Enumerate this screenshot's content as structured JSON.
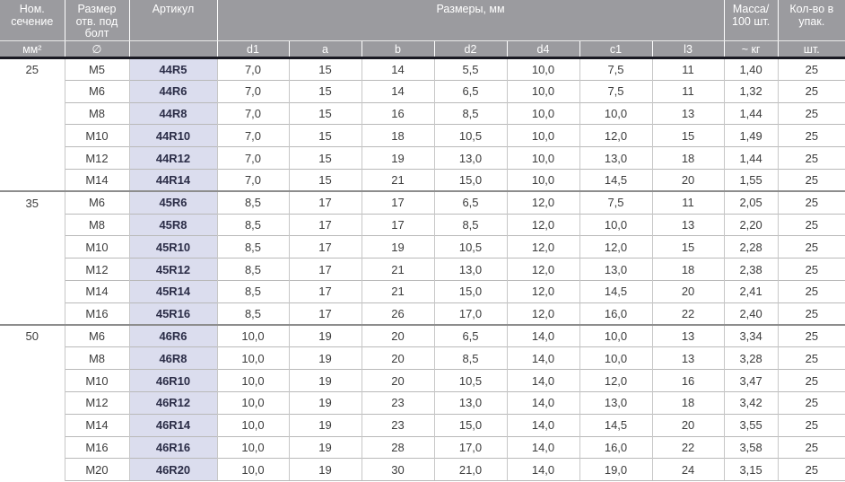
{
  "colors": {
    "header_bg": "#9b9b9f",
    "header_text": "#ffffff",
    "header_rule_dark": "#191922",
    "article_col_bg": "#dbddee",
    "article_text": "#2b2d47",
    "body_text": "#3c3c3c",
    "row_line": "#b9b9b9",
    "section_line": "#8d8d8d"
  },
  "header": {
    "groups": [
      {
        "label": "Ном.\nсечение"
      },
      {
        "label": "Размер\nотв. под\nболт"
      },
      {
        "label": "Артикул"
      },
      {
        "label": "Размеры, мм"
      },
      {
        "label": "Масса/\n100 шт."
      },
      {
        "label": "Кол-во в\nупак."
      }
    ],
    "subs": [
      "мм²",
      "∅",
      "",
      "d1",
      "a",
      "b",
      "d2",
      "d4",
      "c1",
      "l3",
      "~ кг",
      "шт."
    ]
  },
  "sections": [
    {
      "section": "25",
      "rows": [
        {
          "size": "M5",
          "article": "44R5",
          "dims": [
            "7,0",
            "15",
            "14",
            "5,5",
            "10,0",
            "7,5",
            "11"
          ],
          "mass": "1,40",
          "pack": "25"
        },
        {
          "size": "M6",
          "article": "44R6",
          "dims": [
            "7,0",
            "15",
            "14",
            "6,5",
            "10,0",
            "7,5",
            "11"
          ],
          "mass": "1,32",
          "pack": "25"
        },
        {
          "size": "M8",
          "article": "44R8",
          "dims": [
            "7,0",
            "15",
            "16",
            "8,5",
            "10,0",
            "10,0",
            "13"
          ],
          "mass": "1,44",
          "pack": "25"
        },
        {
          "size": "M10",
          "article": "44R10",
          "dims": [
            "7,0",
            "15",
            "18",
            "10,5",
            "10,0",
            "12,0",
            "15"
          ],
          "mass": "1,49",
          "pack": "25"
        },
        {
          "size": "M12",
          "article": "44R12",
          "dims": [
            "7,0",
            "15",
            "19",
            "13,0",
            "10,0",
            "13,0",
            "18"
          ],
          "mass": "1,44",
          "pack": "25"
        },
        {
          "size": "M14",
          "article": "44R14",
          "dims": [
            "7,0",
            "15",
            "21",
            "15,0",
            "10,0",
            "14,5",
            "20"
          ],
          "mass": "1,55",
          "pack": "25"
        }
      ]
    },
    {
      "section": "35",
      "rows": [
        {
          "size": "M6",
          "article": "45R6",
          "dims": [
            "8,5",
            "17",
            "17",
            "6,5",
            "12,0",
            "7,5",
            "11"
          ],
          "mass": "2,05",
          "pack": "25"
        },
        {
          "size": "M8",
          "article": "45R8",
          "dims": [
            "8,5",
            "17",
            "17",
            "8,5",
            "12,0",
            "10,0",
            "13"
          ],
          "mass": "2,20",
          "pack": "25"
        },
        {
          "size": "M10",
          "article": "45R10",
          "dims": [
            "8,5",
            "17",
            "19",
            "10,5",
            "12,0",
            "12,0",
            "15"
          ],
          "mass": "2,28",
          "pack": "25"
        },
        {
          "size": "M12",
          "article": "45R12",
          "dims": [
            "8,5",
            "17",
            "21",
            "13,0",
            "12,0",
            "13,0",
            "18"
          ],
          "mass": "2,38",
          "pack": "25"
        },
        {
          "size": "M14",
          "article": "45R14",
          "dims": [
            "8,5",
            "17",
            "21",
            "15,0",
            "12,0",
            "14,5",
            "20"
          ],
          "mass": "2,41",
          "pack": "25"
        },
        {
          "size": "M16",
          "article": "45R16",
          "dims": [
            "8,5",
            "17",
            "26",
            "17,0",
            "12,0",
            "16,0",
            "22"
          ],
          "mass": "2,40",
          "pack": "25"
        }
      ]
    },
    {
      "section": "50",
      "rows": [
        {
          "size": "M6",
          "article": "46R6",
          "dims": [
            "10,0",
            "19",
            "20",
            "6,5",
            "14,0",
            "10,0",
            "13"
          ],
          "mass": "3,34",
          "pack": "25"
        },
        {
          "size": "M8",
          "article": "46R8",
          "dims": [
            "10,0",
            "19",
            "20",
            "8,5",
            "14,0",
            "10,0",
            "13"
          ],
          "mass": "3,28",
          "pack": "25"
        },
        {
          "size": "M10",
          "article": "46R10",
          "dims": [
            "10,0",
            "19",
            "20",
            "10,5",
            "14,0",
            "12,0",
            "16"
          ],
          "mass": "3,47",
          "pack": "25"
        },
        {
          "size": "M12",
          "article": "46R12",
          "dims": [
            "10,0",
            "19",
            "23",
            "13,0",
            "14,0",
            "13,0",
            "18"
          ],
          "mass": "3,42",
          "pack": "25"
        },
        {
          "size": "M14",
          "article": "46R14",
          "dims": [
            "10,0",
            "19",
            "23",
            "15,0",
            "14,0",
            "14,5",
            "20"
          ],
          "mass": "3,55",
          "pack": "25"
        },
        {
          "size": "M16",
          "article": "46R16",
          "dims": [
            "10,0",
            "19",
            "28",
            "17,0",
            "14,0",
            "16,0",
            "22"
          ],
          "mass": "3,58",
          "pack": "25"
        },
        {
          "size": "M20",
          "article": "46R20",
          "dims": [
            "10,0",
            "19",
            "30",
            "21,0",
            "14,0",
            "19,0",
            "24"
          ],
          "mass": "3,15",
          "pack": "25"
        }
      ]
    }
  ]
}
